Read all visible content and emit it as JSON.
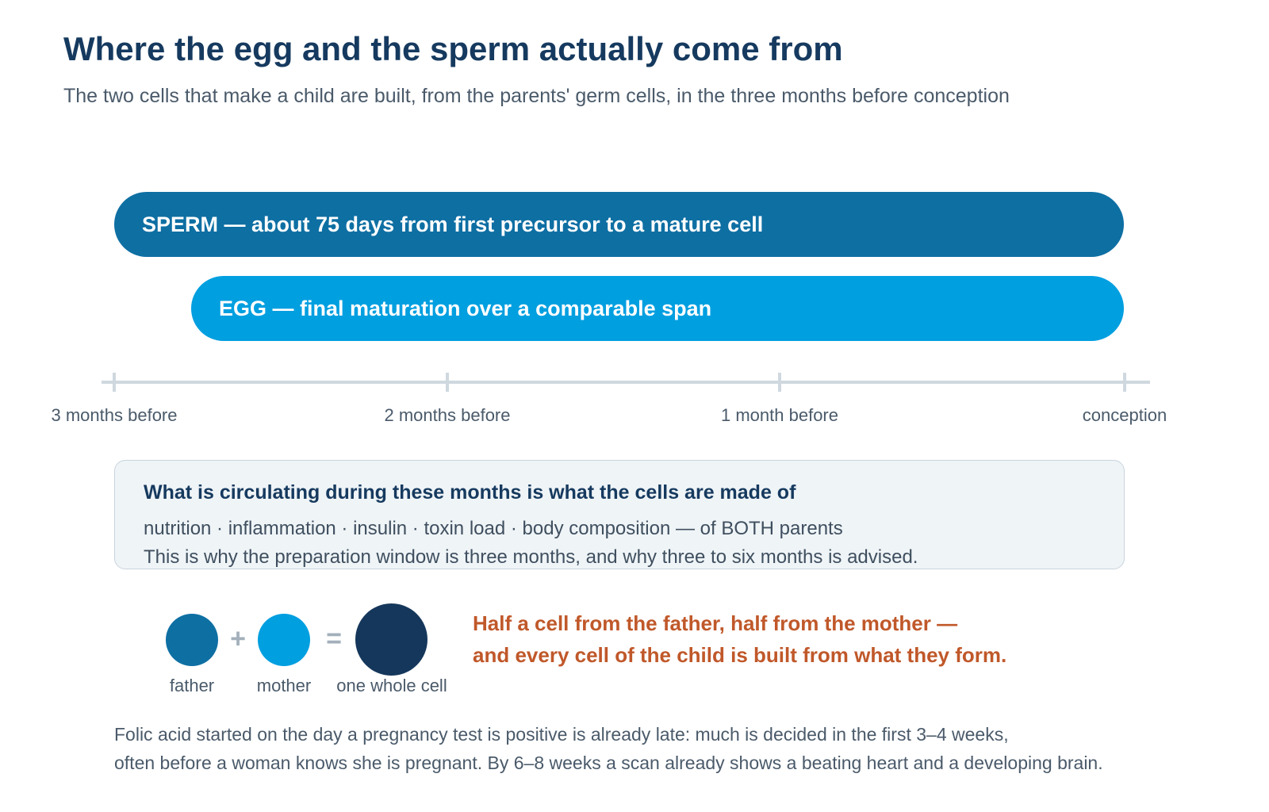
{
  "header": {
    "title": "Where the egg and the sperm actually come from",
    "subtitle": "The two cells that make a child are built, from the parents' germ cells, in the three months before conception"
  },
  "timeline": {
    "bars": [
      {
        "label": "SPERM — about 75 days from first precursor to a mature cell",
        "color": "#0e6fa3"
      },
      {
        "label": "EGG — final maturation over a comparable span",
        "color": "#009fe0"
      }
    ],
    "axis_ticks": [
      "3 months before",
      "2 months before",
      "1 month before",
      "conception"
    ]
  },
  "info_box": {
    "heading": "What is circulating during these months is what the cells are made of",
    "line1": "nutrition · inflammation · insulin · toxin load · body composition — of BOTH parents",
    "line2": "This is why the preparation window is three months, and why three to six months is advised."
  },
  "equation": {
    "plus": "+",
    "equals": "=",
    "labels": [
      "father",
      "mother",
      "one whole cell"
    ],
    "colors": {
      "father": "#0e6fa3",
      "mother": "#009fe0",
      "whole": "#15375b"
    }
  },
  "emphasis": {
    "line1": "Half a cell from the father, half from the mother —",
    "line2": "and every cell of the child is built from what they form."
  },
  "footnote": {
    "line1": "Folic acid started on the day a pregnancy test is positive is already late: much is decided in the first 3–4 weeks,",
    "line2": "often before a woman knows she is pregnant. By 6–8 weeks a scan already shows a beating heart and a developing brain."
  }
}
